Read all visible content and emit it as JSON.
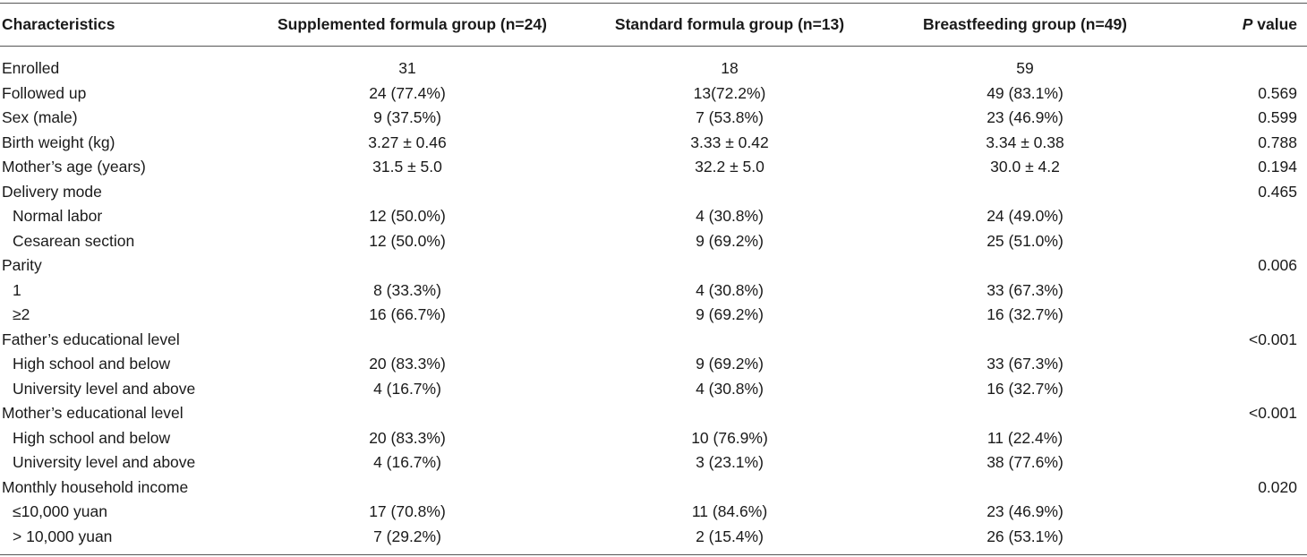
{
  "header": {
    "characteristics": "Characteristics",
    "supplemented": "Supplemented formula group (n=24)",
    "standard": "Standard formula group (n=13)",
    "breastfeeding": "Breastfeeding group (n=49)",
    "p_italic": "P",
    "p_rest": " value"
  },
  "rows": [
    {
      "label": "Enrolled",
      "indent": false,
      "supplemented": "31",
      "standard": "18",
      "breastfeeding": "59",
      "p": ""
    },
    {
      "label": "Followed up",
      "indent": false,
      "supplemented": "24 (77.4%)",
      "standard": "13(72.2%)",
      "breastfeeding": "49 (83.1%)",
      "p": "0.569"
    },
    {
      "label": "Sex (male)",
      "indent": false,
      "supplemented": "9 (37.5%)",
      "standard": "7 (53.8%)",
      "breastfeeding": "23 (46.9%)",
      "p": "0.599"
    },
    {
      "label": "Birth weight (kg)",
      "indent": false,
      "supplemented": "3.27 ± 0.46",
      "standard": "3.33 ± 0.42",
      "breastfeeding": "3.34 ± 0.38",
      "p": "0.788"
    },
    {
      "label": "Mother’s age (years)",
      "indent": false,
      "supplemented": "31.5 ± 5.0",
      "standard": "32.2 ± 5.0",
      "breastfeeding": "30.0 ± 4.2",
      "p": "0.194"
    },
    {
      "label": "Delivery mode",
      "indent": false,
      "supplemented": "",
      "standard": "",
      "breastfeeding": "",
      "p": "0.465"
    },
    {
      "label": "Normal labor",
      "indent": true,
      "supplemented": "12 (50.0%)",
      "standard": "4 (30.8%)",
      "breastfeeding": "24 (49.0%)",
      "p": ""
    },
    {
      "label": "Cesarean section",
      "indent": true,
      "supplemented": "12 (50.0%)",
      "standard": "9 (69.2%)",
      "breastfeeding": "25 (51.0%)",
      "p": ""
    },
    {
      "label": "Parity",
      "indent": false,
      "supplemented": "",
      "standard": "",
      "breastfeeding": "",
      "p": "0.006"
    },
    {
      "label": "1",
      "indent": true,
      "supplemented": "8 (33.3%)",
      "standard": "4 (30.8%)",
      "breastfeeding": "33 (67.3%)",
      "p": ""
    },
    {
      "label": "≥2",
      "indent": true,
      "supplemented": "16 (66.7%)",
      "standard": "9 (69.2%)",
      "breastfeeding": "16 (32.7%)",
      "p": ""
    },
    {
      "label": "Father’s educational level",
      "indent": false,
      "supplemented": "",
      "standard": "",
      "breastfeeding": "",
      "p": "<0.001"
    },
    {
      "label": "High school and below",
      "indent": true,
      "supplemented": "20 (83.3%)",
      "standard": "9 (69.2%)",
      "breastfeeding": "33 (67.3%)",
      "p": ""
    },
    {
      "label": "University level and above",
      "indent": true,
      "supplemented": "4 (16.7%)",
      "standard": "4 (30.8%)",
      "breastfeeding": "16 (32.7%)",
      "p": ""
    },
    {
      "label": "Mother’s educational level",
      "indent": false,
      "supplemented": "",
      "standard": "",
      "breastfeeding": "",
      "p": "<0.001"
    },
    {
      "label": "High school and below",
      "indent": true,
      "supplemented": "20 (83.3%)",
      "standard": "10 (76.9%)",
      "breastfeeding": "11 (22.4%)",
      "p": ""
    },
    {
      "label": "University level and above",
      "indent": true,
      "supplemented": "4 (16.7%)",
      "standard": "3 (23.1%)",
      "breastfeeding": "38 (77.6%)",
      "p": ""
    },
    {
      "label": "Monthly household income",
      "indent": false,
      "supplemented": "",
      "standard": "",
      "breastfeeding": "",
      "p": "0.020"
    },
    {
      "label": "≤10,000 yuan",
      "indent": true,
      "supplemented": "17 (70.8%)",
      "standard": "11 (84.6%)",
      "breastfeeding": "23 (46.9%)",
      "p": ""
    },
    {
      "label": "> 10,000 yuan",
      "indent": true,
      "supplemented": "7 (29.2%)",
      "standard": "2 (15.4%)",
      "breastfeeding": "26 (53.1%)",
      "p": ""
    }
  ]
}
